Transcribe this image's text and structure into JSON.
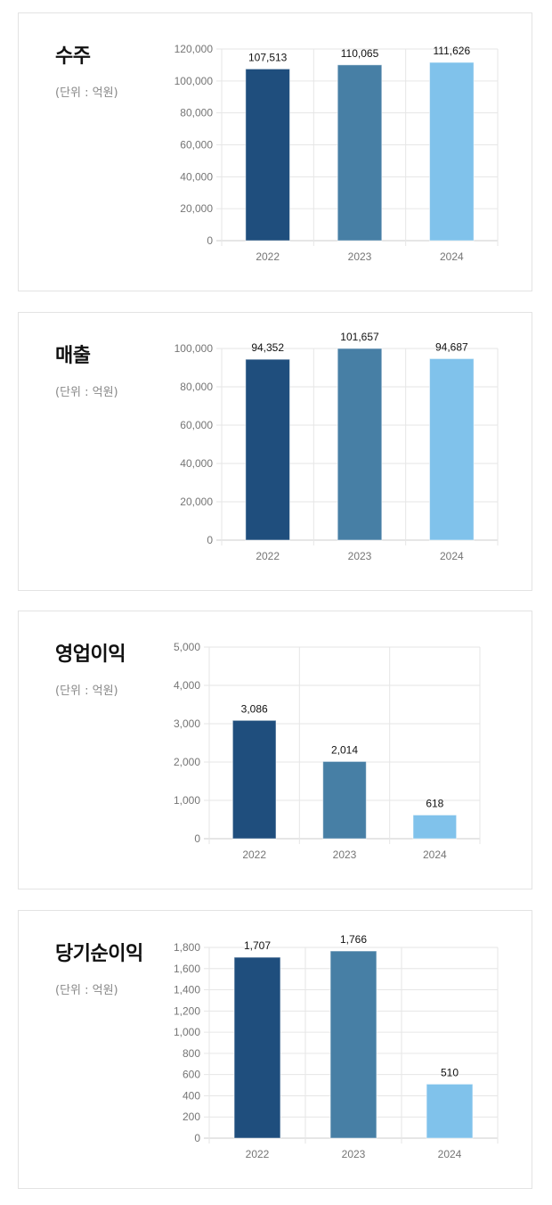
{
  "colors": {
    "bar_2022": "#1f4e7d",
    "bar_2023": "#477fa5",
    "bar_2024": "#80c2eb",
    "grid": "#e6e6e6",
    "axis": "#cccccc"
  },
  "cards": [
    {
      "title": "수주",
      "unit": "(단위 : 억원)"
    },
    {
      "title": "매출",
      "unit": "(단위 : 억원)"
    },
    {
      "title": "영업이익",
      "unit": "(단위 : 억원)"
    },
    {
      "title": "당기순이익",
      "unit": "(단위 : 억원)"
    }
  ],
  "chart_data": [
    {
      "type": "bar",
      "title": "수주",
      "subtitle": "(단위 : 억원)",
      "categories": [
        "2022",
        "2023",
        "2024"
      ],
      "values": [
        107513,
        110065,
        111626
      ],
      "value_labels": [
        "107,513",
        "110,065",
        "111,626"
      ],
      "yticks": [
        0,
        20000,
        40000,
        60000,
        80000,
        100000,
        120000
      ],
      "ytick_labels": [
        "0",
        "20,000",
        "40,000",
        "60,000",
        "80,000",
        "100,000",
        "120,000"
      ],
      "ylim": [
        0,
        120000
      ],
      "xlabel": "",
      "ylabel": "",
      "grid": true
    },
    {
      "type": "bar",
      "title": "매출",
      "subtitle": "(단위 : 억원)",
      "categories": [
        "2022",
        "2023",
        "2024"
      ],
      "values": [
        94352,
        101657,
        94687
      ],
      "value_labels": [
        "94,352",
        "101,657",
        "94,687"
      ],
      "yticks": [
        0,
        20000,
        40000,
        60000,
        80000,
        100000
      ],
      "ytick_labels": [
        "0",
        "20,000",
        "40,000",
        "60,000",
        "80,000",
        "100,000"
      ],
      "ylim": [
        0,
        100000
      ],
      "xlabel": "",
      "ylabel": "",
      "grid": true
    },
    {
      "type": "bar",
      "title": "영업이익",
      "subtitle": "(단위 : 억원)",
      "categories": [
        "2022",
        "2023",
        "2024"
      ],
      "values": [
        3086,
        2014,
        618
      ],
      "value_labels": [
        "3,086",
        "2,014",
        "618"
      ],
      "yticks": [
        0,
        1000,
        2000,
        3000,
        4000,
        5000
      ],
      "ytick_labels": [
        "0",
        "1,000",
        "2,000",
        "3,000",
        "4,000",
        "5,000"
      ],
      "ylim": [
        0,
        5000
      ],
      "xlabel": "",
      "ylabel": "",
      "grid": true
    },
    {
      "type": "bar",
      "title": "당기순이익",
      "subtitle": "(단위 : 억원)",
      "categories": [
        "2022",
        "2023",
        "2024"
      ],
      "values": [
        1707,
        1766,
        510
      ],
      "value_labels": [
        "1,707",
        "1,766",
        "510"
      ],
      "yticks": [
        0,
        200,
        400,
        600,
        800,
        1000,
        1200,
        1400,
        1600,
        1800
      ],
      "ytick_labels": [
        "0",
        "200",
        "400",
        "600",
        "800",
        "1,000",
        "1,200",
        "1,400",
        "1,600",
        "1,800"
      ],
      "ylim": [
        0,
        1800
      ],
      "xlabel": "",
      "ylabel": "",
      "grid": true
    }
  ]
}
